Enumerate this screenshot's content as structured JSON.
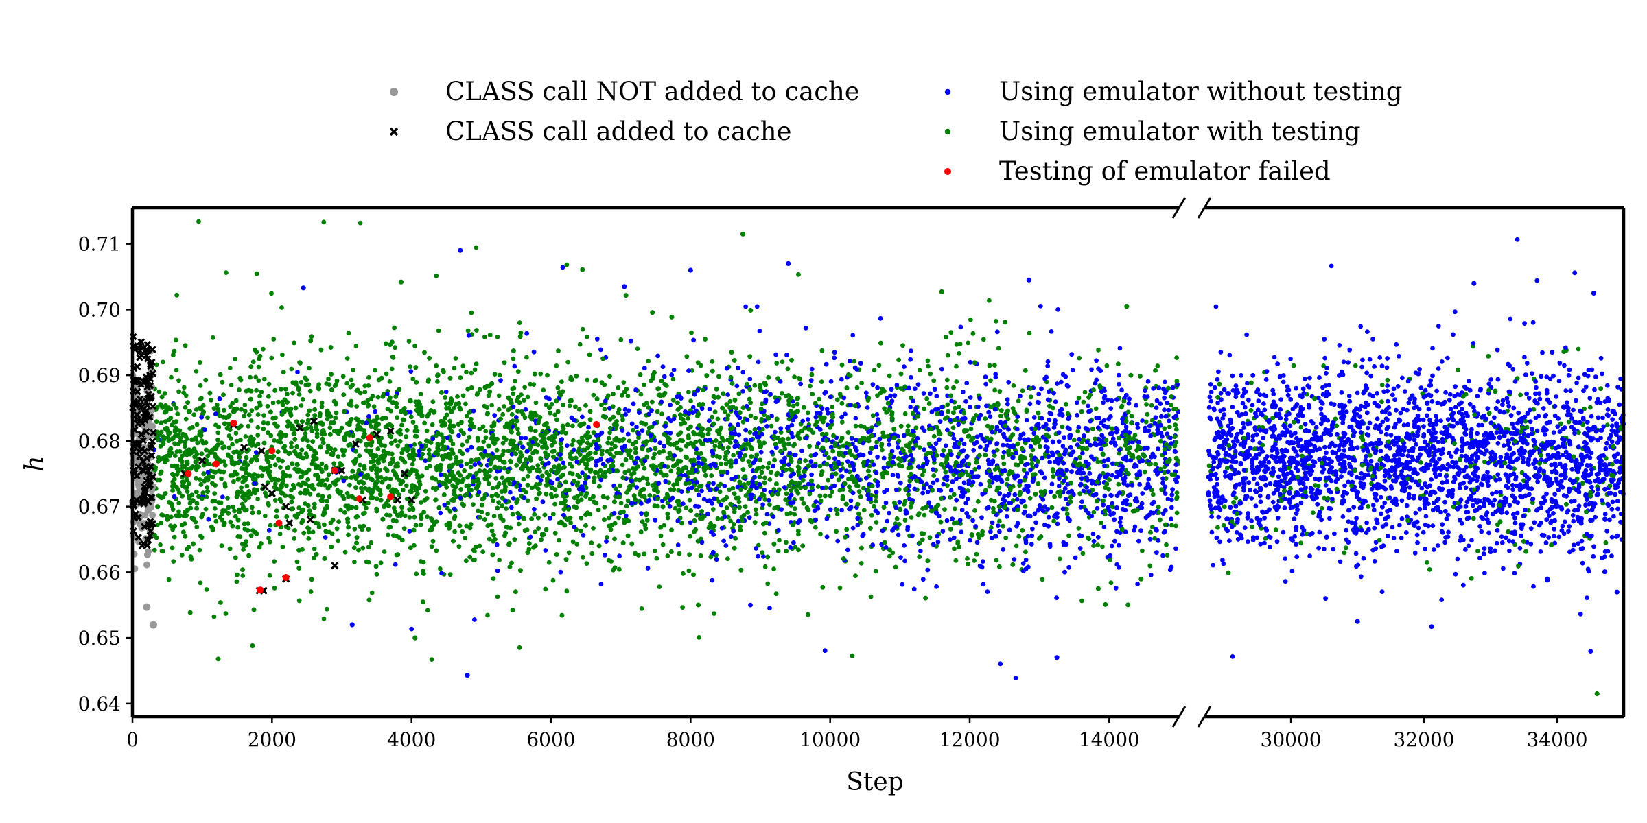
{
  "chart_data": {
    "type": "scatter",
    "title": "",
    "xlabel": "Step",
    "ylabel": "h",
    "broken_x_axis": true,
    "x_segments": [
      {
        "xlim": [
          0,
          15000
        ],
        "ticks": [
          0,
          2000,
          4000,
          6000,
          8000,
          10000,
          12000,
          14000
        ]
      },
      {
        "xlim": [
          28700,
          35000
        ],
        "ticks": [
          30000,
          32000,
          34000
        ]
      }
    ],
    "ylim": [
      0.638,
      0.7155
    ],
    "yticks": [
      0.64,
      0.65,
      0.66,
      0.67,
      0.68,
      0.69,
      0.7,
      0.71
    ],
    "grid": false,
    "legend_position": "top-center, above plot, two columns",
    "series": [
      {
        "name": "CLASS call NOT added to cache",
        "color": "#999999",
        "marker": "circle",
        "x_range": [
          0,
          300
        ],
        "y_center": 0.675,
        "y_spread": 0.012,
        "notable_points": [
          [
            205,
            0.6547
          ],
          [
            300,
            0.652
          ]
        ]
      },
      {
        "name": "CLASS call added to cache",
        "color": "#000000",
        "marker": "x",
        "x_range": [
          0,
          300
        ],
        "y_center": 0.68,
        "y_spread": 0.016,
        "notable_points": [
          [
            750,
            0.675
          ],
          [
            1000,
            0.677
          ],
          [
            1450,
            0.6825
          ],
          [
            1600,
            0.679
          ],
          [
            1850,
            0.6785
          ],
          [
            1900,
            0.673
          ],
          [
            2000,
            0.672
          ],
          [
            2200,
            0.67
          ],
          [
            2400,
            0.682
          ],
          [
            2600,
            0.683
          ],
          [
            2900,
            0.6755
          ],
          [
            3000,
            0.6755
          ],
          [
            3200,
            0.6795
          ],
          [
            3500,
            0.681
          ],
          [
            3700,
            0.6815
          ],
          [
            3900,
            0.675
          ],
          [
            2550,
            0.668
          ],
          [
            2250,
            0.6675
          ],
          [
            1820,
            0.6572
          ],
          [
            1880,
            0.6572
          ],
          [
            2200,
            0.659
          ],
          [
            2900,
            0.661
          ],
          [
            3300,
            0.671
          ],
          [
            3800,
            0.671
          ],
          [
            4000,
            0.671
          ]
        ]
      },
      {
        "name": "Using emulator without testing",
        "color": "#0000ff",
        "marker": "point",
        "notable_points": [
          [
            4700,
            0.709
          ],
          [
            9400,
            0.707
          ],
          [
            2450,
            0.7033
          ],
          [
            7050,
            0.7035
          ],
          [
            8000,
            0.706
          ],
          [
            12850,
            0.7045
          ],
          [
            32750,
            0.704
          ],
          [
            34550,
            0.7025
          ],
          [
            4800,
            0.6443
          ],
          [
            13250,
            0.647
          ],
          [
            31000,
            0.6525
          ],
          [
            3150,
            0.652
          ],
          [
            34900,
            0.657
          ]
        ]
      },
      {
        "name": "Using emulator with testing",
        "color": "#008000",
        "marker": "point",
        "notable_points": [
          [
            8750,
            0.7115
          ],
          [
            3850,
            0.7042
          ],
          [
            34600,
            0.6415
          ],
          [
            1720,
            0.6488
          ],
          [
            4050,
            0.65
          ],
          [
            11600,
            0.7027
          ],
          [
            14250,
            0.7005
          ]
        ]
      },
      {
        "name": "Testing of emulator failed",
        "color": "#ff0000",
        "marker": "point",
        "points": [
          [
            800,
            0.675
          ],
          [
            1200,
            0.6765
          ],
          [
            2100,
            0.6675
          ],
          [
            6650,
            0.6825
          ],
          [
            3400,
            0.6805
          ],
          [
            2900,
            0.6755
          ],
          [
            3250,
            0.6712
          ],
          [
            3700,
            0.6715
          ],
          [
            2200,
            0.6592
          ],
          [
            1830,
            0.6573
          ],
          [
            1450,
            0.6827
          ],
          [
            2000,
            0.6785
          ]
        ]
      }
    ]
  }
}
